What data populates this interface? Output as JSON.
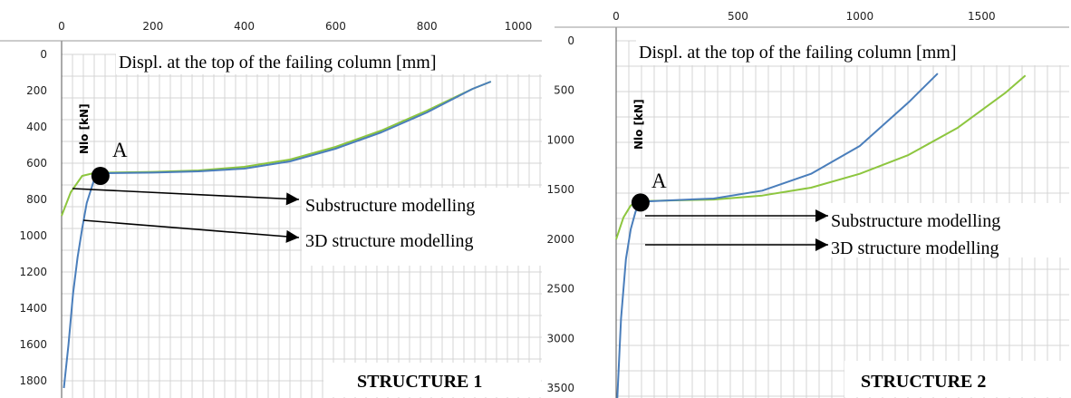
{
  "chart_data": [
    {
      "type": "line",
      "title": "STRUCTURE 1",
      "xlabel": "Displ. at the top of the failing column [mm]",
      "ylabel": "Nlo [kN]",
      "x_ticks": [
        "0",
        "200",
        "400",
        "600",
        "800",
        "1000"
      ],
      "y_ticks": [
        "0",
        "200",
        "400",
        "600",
        "800",
        "1000",
        "1200",
        "1400",
        "1600",
        "1800"
      ],
      "xlim": [
        0,
        1000
      ],
      "ylim": [
        0,
        1900
      ],
      "y_inverted": true,
      "grid": true,
      "point_label": "A",
      "point": {
        "x": 85,
        "y": 670
      },
      "series": [
        {
          "name": "Substructure modelling",
          "color": "#8dc63f",
          "x": [
            0,
            20,
            45,
            70,
            100,
            200,
            300,
            400,
            500,
            600,
            700,
            800,
            900,
            940
          ],
          "y": [
            890,
            760,
            670,
            655,
            652,
            648,
            640,
            620,
            580,
            510,
            420,
            310,
            190,
            150
          ]
        },
        {
          "name": "3D structure modelling",
          "color": "#4a7ebb",
          "x": [
            5,
            15,
            25,
            35,
            45,
            55,
            70,
            85,
            100,
            200,
            300,
            400,
            500,
            600,
            700,
            800,
            900,
            940
          ],
          "y": [
            1840,
            1600,
            1320,
            1120,
            960,
            820,
            700,
            662,
            655,
            652,
            645,
            630,
            590,
            520,
            430,
            320,
            190,
            150
          ]
        }
      ]
    },
    {
      "type": "line",
      "title": "STRUCTURE 2",
      "xlabel": "Displ. at the top of the failing column [mm]",
      "ylabel": "Nlo [kN]",
      "x_ticks": [
        "0",
        "500",
        "1000",
        "1500"
      ],
      "y_ticks": [
        "0",
        "500",
        "1000",
        "1500",
        "2000",
        "2500",
        "3000",
        "3500"
      ],
      "xlim": [
        0,
        1800
      ],
      "ylim": [
        0,
        3600
      ],
      "y_inverted": true,
      "grid": true,
      "point_label": "A",
      "point": {
        "x": 100,
        "y": 1630
      },
      "series": [
        {
          "name": "Substructure modelling",
          "color": "#8dc63f",
          "x": [
            0,
            30,
            60,
            90,
            120,
            200,
            400,
            600,
            800,
            1000,
            1200,
            1400,
            1600,
            1680
          ],
          "y": [
            2000,
            1780,
            1660,
            1625,
            1615,
            1610,
            1600,
            1560,
            1480,
            1340,
            1150,
            880,
            520,
            350
          ]
        },
        {
          "name": "3D structure modelling",
          "color": "#4a7ebb",
          "x": [
            5,
            20,
            40,
            60,
            80,
            100,
            120,
            200,
            400,
            600,
            800,
            1000,
            1200,
            1320
          ],
          "y": [
            3600,
            2800,
            2200,
            1900,
            1720,
            1640,
            1620,
            1610,
            1590,
            1510,
            1340,
            1060,
            620,
            330
          ]
        }
      ]
    }
  ]
}
